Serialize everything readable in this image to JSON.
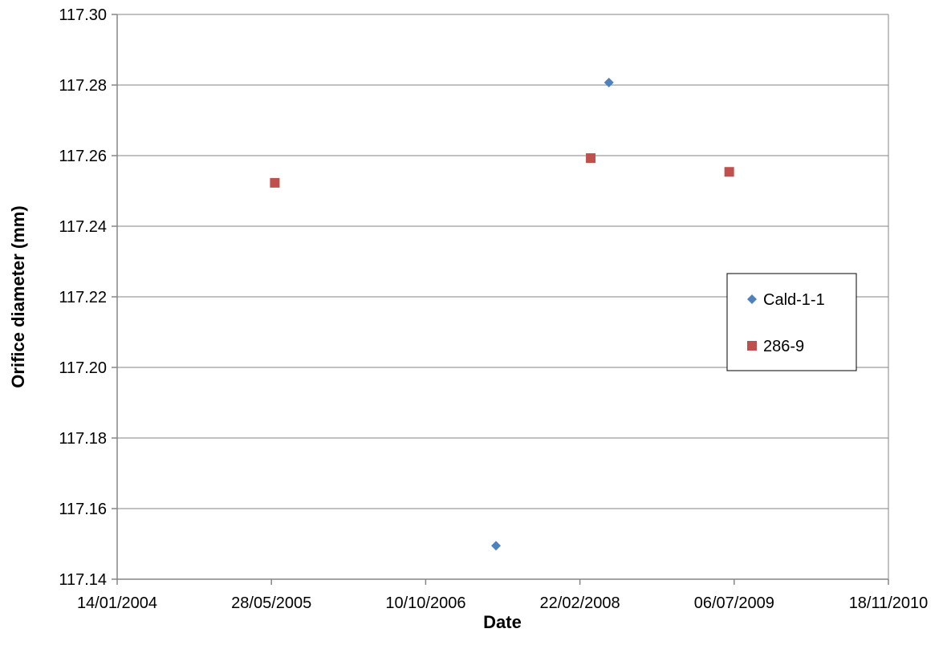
{
  "chart_data": {
    "type": "scatter",
    "title": "",
    "xlabel": "Date",
    "ylabel": "Orifice diameter (mm)",
    "xlim": [
      "2004-01-14",
      "2010-11-18"
    ],
    "ylim": [
      117.14,
      117.3
    ],
    "x_ticks": [
      {
        "date": "2004-01-14",
        "label": "14/01/2004"
      },
      {
        "date": "2005-05-28",
        "label": "28/05/2005"
      },
      {
        "date": "2006-10-10",
        "label": "10/10/2006"
      },
      {
        "date": "2008-02-22",
        "label": "22/02/2008"
      },
      {
        "date": "2009-07-06",
        "label": "06/07/2009"
      },
      {
        "date": "2010-11-18",
        "label": "18/11/2010"
      }
    ],
    "y_ticks": [
      "117.14",
      "117.16",
      "117.18",
      "117.20",
      "117.22",
      "117.24",
      "117.26",
      "117.28",
      "117.30"
    ],
    "grid": "horizontal",
    "legend_position": "right",
    "series": [
      {
        "name": "Cald-1-1",
        "marker": "diamond",
        "color": "#4F81BD",
        "points": [
          {
            "x": "2007-05-26",
            "y": 117.1495
          },
          {
            "x": "2008-05-26",
            "y": 117.2807
          }
        ]
      },
      {
        "name": "286-9",
        "marker": "square",
        "color": "#C0504D",
        "points": [
          {
            "x": "2005-06-08",
            "y": 117.2523
          },
          {
            "x": "2008-03-28",
            "y": 117.2593
          },
          {
            "x": "2009-06-20",
            "y": 117.2554
          }
        ]
      }
    ]
  }
}
